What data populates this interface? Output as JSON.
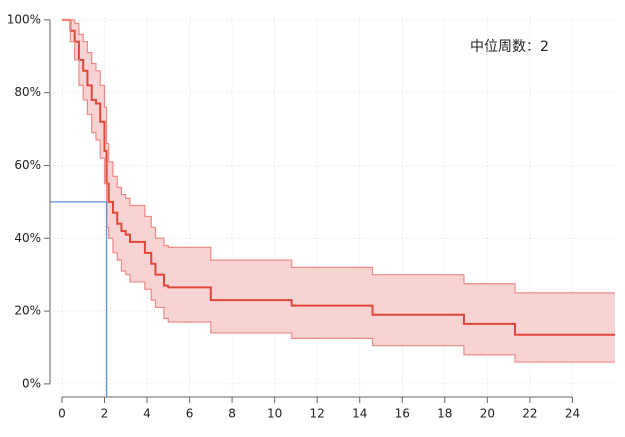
{
  "chart_data": {
    "type": "step",
    "annotation": "中位周数：2",
    "x": [
      0,
      0.4,
      0.6,
      0.8,
      1.0,
      1.2,
      1.4,
      1.6,
      1.8,
      2.0,
      2.1,
      2.2,
      2.4,
      2.6,
      2.8,
      3.0,
      3.2,
      3.9,
      4.2,
      4.4,
      4.8,
      5.0,
      7.0,
      10.8,
      14.6,
      18.9,
      21.3,
      26
    ],
    "series": [
      {
        "role": "estimate",
        "color": "#e0473a",
        "values": [
          100,
          97,
          94,
          89,
          86,
          82,
          78,
          77,
          72,
          64,
          55,
          50,
          47,
          44,
          42,
          41,
          39,
          36,
          33,
          30,
          27,
          26.5,
          23,
          21.5,
          19,
          16.5,
          13.5,
          13.5
        ]
      },
      {
        "role": "upper",
        "color": "#ee8a86",
        "values": [
          100,
          100,
          99,
          96,
          94,
          91,
          88,
          86,
          82,
          76,
          66,
          61,
          57,
          54,
          52,
          51,
          49,
          46,
          43,
          40,
          38,
          37.5,
          34,
          32,
          30,
          27.5,
          25,
          25
        ]
      },
      {
        "role": "lower",
        "color": "#ee8a86",
        "values": [
          100,
          94,
          89,
          82,
          78,
          74,
          69,
          67,
          62,
          55,
          43,
          40,
          36,
          34,
          31,
          30,
          28,
          26,
          23,
          21,
          18,
          17,
          14,
          12.5,
          10.5,
          8,
          6,
          6
        ]
      }
    ],
    "band_color": "#f8d3d3",
    "median_line": {
      "x": 2.1,
      "y": 50,
      "color": "#5b8fd6"
    },
    "xlim": [
      -0.56,
      26
    ],
    "ylim": [
      -3.6,
      100.5
    ],
    "xticks": [
      0,
      2,
      4,
      6,
      8,
      10,
      12,
      14,
      16,
      18,
      20,
      22,
      24
    ],
    "yticks": [
      {
        "value": 0,
        "label": "0%"
      },
      {
        "value": 20,
        "label": "20%"
      },
      {
        "value": 40,
        "label": "40%"
      },
      {
        "value": 60,
        "label": "60%"
      },
      {
        "value": 80,
        "label": "80%"
      },
      {
        "value": 100,
        "label": "100%"
      }
    ],
    "grid": true
  }
}
